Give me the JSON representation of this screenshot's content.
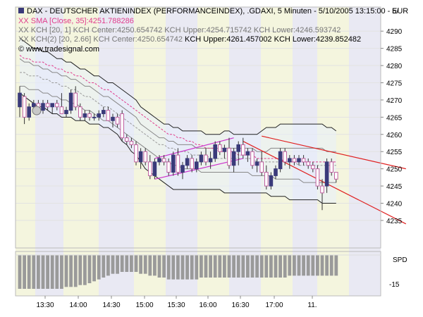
{
  "header": {
    "line1": "DAX - DEUTSCHER AKTIENINDEX (PERFORMANCEINDEX), .GDAXI, 5 Minuten - 5/10/2005 13:15:00 - 5/",
    "currency": "EUR",
    "line2": "XX SMA [Close, 35]:4251.788286",
    "line3": "XX KCH [20, 1] KCH Center:4250.654742 KCH Upper:4254.715742 KCH Lower:4246.593742",
    "line4a": "XX KCH(2) [20, 2.66] KCH Center:4250.654742",
    "line4b": " KCH Upper:4261.457002 KCH Lower:4239.852482",
    "copyright": "© www.tradesignal.com"
  },
  "colors": {
    "up": "#3a3a7a",
    "down": "#c060a0",
    "sma": "#e03c8c",
    "channel_outer": "#222222",
    "channel_inner": "#888888",
    "trend_red": "#e02020",
    "trend_magenta": "#cc33cc",
    "band_yellow": "#f4f5de",
    "band_purple": "#e9e9f3",
    "volume": "#9a9a9a"
  },
  "chart_data": {
    "type": "candlestick",
    "title": "DAX - DEUTSCHER AKTIENINDEX (PERFORMANCEINDEX), .GDAXI, 5 Minuten",
    "ylabel": "EUR",
    "ylim": [
      4227,
      4297
    ],
    "y_ticks": [
      4235,
      4240,
      4245,
      4250,
      4255,
      4260,
      4265,
      4270,
      4275,
      4280,
      4285,
      4290
    ],
    "x_tick_labels": [
      "13:30",
      "14:00",
      "14:30",
      "15:00",
      "15:30",
      "16:00",
      "16:30",
      "17:00",
      "11."
    ],
    "candles": [
      {
        "o": 4268,
        "h": 4274,
        "l": 4265,
        "c": 4272
      },
      {
        "o": 4271,
        "h": 4272,
        "l": 4263,
        "c": 4265
      },
      {
        "o": 4265,
        "h": 4269,
        "l": 4264,
        "c": 4268
      },
      {
        "o": 4268,
        "h": 4270,
        "l": 4266,
        "c": 4269
      },
      {
        "o": 4269,
        "h": 4270,
        "l": 4266,
        "c": 4267
      },
      {
        "o": 4267,
        "h": 4270,
        "l": 4266,
        "c": 4269
      },
      {
        "o": 4269,
        "h": 4270,
        "l": 4267,
        "c": 4268
      },
      {
        "o": 4268,
        "h": 4269,
        "l": 4266,
        "c": 4269
      },
      {
        "o": 4269,
        "h": 4270,
        "l": 4267,
        "c": 4268
      },
      {
        "o": 4268,
        "h": 4272,
        "l": 4266,
        "c": 4266
      },
      {
        "o": 4266,
        "h": 4268,
        "l": 4265,
        "c": 4267
      },
      {
        "o": 4267,
        "h": 4273,
        "l": 4266,
        "c": 4272
      },
      {
        "o": 4272,
        "h": 4274,
        "l": 4267,
        "c": 4268
      },
      {
        "o": 4268,
        "h": 4269,
        "l": 4264,
        "c": 4265
      },
      {
        "o": 4265,
        "h": 4267,
        "l": 4264,
        "c": 4266
      },
      {
        "o": 4266,
        "h": 4267,
        "l": 4264,
        "c": 4265
      },
      {
        "o": 4265,
        "h": 4266,
        "l": 4264,
        "c": 4265
      },
      {
        "o": 4265,
        "h": 4267,
        "l": 4264,
        "c": 4266
      },
      {
        "o": 4266,
        "h": 4268,
        "l": 4265,
        "c": 4267
      },
      {
        "o": 4267,
        "h": 4268,
        "l": 4264,
        "c": 4264
      },
      {
        "o": 4264,
        "h": 4266,
        "l": 4262,
        "c": 4265
      },
      {
        "o": 4265,
        "h": 4266,
        "l": 4262,
        "c": 4263
      },
      {
        "o": 4266,
        "h": 4267,
        "l": 4258,
        "c": 4259
      },
      {
        "o": 4259,
        "h": 4260,
        "l": 4257,
        "c": 4258
      },
      {
        "o": 4258,
        "h": 4259,
        "l": 4256,
        "c": 4257
      },
      {
        "o": 4257,
        "h": 4258,
        "l": 4251,
        "c": 4252
      },
      {
        "o": 4252,
        "h": 4256,
        "l": 4250,
        "c": 4255
      },
      {
        "o": 4255,
        "h": 4256,
        "l": 4251,
        "c": 4252
      },
      {
        "o": 4252,
        "h": 4254,
        "l": 4247,
        "c": 4248
      },
      {
        "o": 4248,
        "h": 4253,
        "l": 4247,
        "c": 4252
      },
      {
        "o": 4252,
        "h": 4254,
        "l": 4251,
        "c": 4253
      },
      {
        "o": 4253,
        "h": 4254,
        "l": 4251,
        "c": 4252
      },
      {
        "o": 4252,
        "h": 4253,
        "l": 4248,
        "c": 4249
      },
      {
        "o": 4249,
        "h": 4255,
        "l": 4248,
        "c": 4254
      },
      {
        "o": 4254,
        "h": 4256,
        "l": 4248,
        "c": 4249
      },
      {
        "o": 4249,
        "h": 4252,
        "l": 4247,
        "c": 4251
      },
      {
        "o": 4251,
        "h": 4254,
        "l": 4250,
        "c": 4253
      },
      {
        "o": 4253,
        "h": 4254,
        "l": 4249,
        "c": 4250
      },
      {
        "o": 4250,
        "h": 4253,
        "l": 4249,
        "c": 4252
      },
      {
        "o": 4252,
        "h": 4255,
        "l": 4251,
        "c": 4254
      },
      {
        "o": 4254,
        "h": 4256,
        "l": 4251,
        "c": 4252
      },
      {
        "o": 4252,
        "h": 4255,
        "l": 4250,
        "c": 4253
      },
      {
        "o": 4253,
        "h": 4258,
        "l": 4252,
        "c": 4257
      },
      {
        "o": 4257,
        "h": 4258,
        "l": 4254,
        "c": 4255
      },
      {
        "o": 4255,
        "h": 4257,
        "l": 4253,
        "c": 4256
      },
      {
        "o": 4256,
        "h": 4259,
        "l": 4250,
        "c": 4251
      },
      {
        "o": 4251,
        "h": 4256,
        "l": 4249,
        "c": 4255
      },
      {
        "o": 4255,
        "h": 4258,
        "l": 4251,
        "c": 4257
      },
      {
        "o": 4257,
        "h": 4259,
        "l": 4253,
        "c": 4254
      },
      {
        "o": 4254,
        "h": 4256,
        "l": 4252,
        "c": 4255
      },
      {
        "o": 4255,
        "h": 4256,
        "l": 4250,
        "c": 4251
      },
      {
        "o": 4251,
        "h": 4253,
        "l": 4249,
        "c": 4252
      },
      {
        "o": 4252,
        "h": 4255,
        "l": 4248,
        "c": 4249
      },
      {
        "o": 4249,
        "h": 4251,
        "l": 4244,
        "c": 4245
      },
      {
        "o": 4245,
        "h": 4249,
        "l": 4244,
        "c": 4248
      },
      {
        "o": 4248,
        "h": 4251,
        "l": 4247,
        "c": 4250
      },
      {
        "o": 4250,
        "h": 4256,
        "l": 4249,
        "c": 4255
      },
      {
        "o": 4255,
        "h": 4256,
        "l": 4251,
        "c": 4252
      },
      {
        "o": 4252,
        "h": 4254,
        "l": 4250,
        "c": 4253
      },
      {
        "o": 4253,
        "h": 4254,
        "l": 4251,
        "c": 4252
      },
      {
        "o": 4252,
        "h": 4254,
        "l": 4251,
        "c": 4253
      },
      {
        "o": 4253,
        "h": 4254,
        "l": 4251,
        "c": 4252
      },
      {
        "o": 4252,
        "h": 4253,
        "l": 4250,
        "c": 4251
      },
      {
        "o": 4251,
        "h": 4252,
        "l": 4249,
        "c": 4250
      },
      {
        "o": 4250,
        "h": 4251,
        "l": 4244,
        "c": 4245
      },
      {
        "o": 4245,
        "h": 4247,
        "l": 4238,
        "c": 4243
      },
      {
        "o": 4245,
        "h": 4253,
        "l": 4243,
        "c": 4252
      },
      {
        "o": 4252,
        "h": 4253,
        "l": 4248,
        "c": 4249
      },
      {
        "o": 4249,
        "h": 4249,
        "l": 4246,
        "c": 4247
      }
    ],
    "channel_upper_outer": [
      4288,
      4287,
      4286,
      4285,
      4285,
      4284,
      4284,
      4283,
      4282,
      4282,
      4281,
      4281,
      4280,
      4279,
      4279,
      4278,
      4277,
      4277,
      4276,
      4275,
      4275,
      4274,
      4273,
      4272,
      4271,
      4270,
      4268,
      4267,
      4266,
      4265,
      4264,
      4263,
      4263,
      4262,
      4262,
      4261,
      4261,
      4261,
      4261,
      4261,
      4260,
      4260,
      4260,
      4260,
      4261,
      4261,
      4260,
      4260,
      4260,
      4260,
      4260,
      4260,
      4261,
      4262,
      4262,
      4262,
      4263,
      4263,
      4263,
      4263,
      4263,
      4263,
      4263,
      4263,
      4263,
      4263,
      4262,
      4262,
      4261
    ],
    "channel_upper_inner": [
      4282,
      4281,
      4281,
      4280,
      4280,
      4279,
      4279,
      4278,
      4278,
      4277,
      4277,
      4276,
      4276,
      4275,
      4274,
      4274,
      4273,
      4272,
      4271,
      4271,
      4270,
      4269,
      4268,
      4267,
      4266,
      4265,
      4263,
      4262,
      4261,
      4260,
      4259,
      4259,
      4258,
      4258,
      4257,
      4257,
      4257,
      4257,
      4256,
      4256,
      4256,
      4256,
      4256,
      4256,
      4256,
      4256,
      4256,
      4256,
      4256,
      4256,
      4256,
      4255,
      4255,
      4255,
      4256,
      4256,
      4256,
      4256,
      4256,
      4256,
      4256,
      4256,
      4256,
      4256,
      4256,
      4256,
      4255,
      4255,
      4255
    ],
    "channel_center": [
      4278,
      4278,
      4277,
      4277,
      4277,
      4276,
      4276,
      4275,
      4275,
      4274,
      4274,
      4273,
      4273,
      4272,
      4271,
      4271,
      4270,
      4269,
      4268,
      4268,
      4267,
      4266,
      4265,
      4264,
      4263,
      4262,
      4261,
      4260,
      4259,
      4258,
      4257,
      4257,
      4256,
      4256,
      4255,
      4255,
      4255,
      4254,
      4254,
      4254,
      4254,
      4253,
      4253,
      4253,
      4253,
      4253,
      4253,
      4253,
      4253,
      4253,
      4253,
      4252,
      4252,
      4252,
      4252,
      4252,
      4252,
      4252,
      4252,
      4252,
      4251,
      4251,
      4251,
      4251,
      4251,
      4251,
      4251,
      4251,
      4251
    ],
    "channel_lower_inner": [
      4274,
      4274,
      4273,
      4273,
      4273,
      4272,
      4272,
      4271,
      4271,
      4270,
      4270,
      4269,
      4269,
      4268,
      4267,
      4267,
      4266,
      4265,
      4264,
      4264,
      4263,
      4262,
      4261,
      4260,
      4259,
      4258,
      4257,
      4256,
      4255,
      4254,
      4253,
      4252,
      4252,
      4251,
      4251,
      4250,
      4250,
      4250,
      4250,
      4249,
      4249,
      4249,
      4249,
      4249,
      4249,
      4249,
      4249,
      4249,
      4249,
      4249,
      4248,
      4248,
      4248,
      4248,
      4248,
      4247,
      4247,
      4247,
      4247,
      4247,
      4247,
      4246,
      4246,
      4246,
      4246,
      4246,
      4246,
      4246,
      4246
    ],
    "channel_lower_outer": [
      4272,
      4271,
      4270,
      4269,
      4268,
      4268,
      4267,
      4266,
      4266,
      4265,
      4265,
      4265,
      4264,
      4264,
      4264,
      4263,
      4263,
      4263,
      4262,
      4262,
      4261,
      4260,
      4258,
      4257,
      4255,
      4254,
      4252,
      4250,
      4249,
      4248,
      4247,
      4246,
      4245,
      4244,
      4244,
      4244,
      4244,
      4244,
      4244,
      4244,
      4244,
      4244,
      4244,
      4244,
      4243,
      4243,
      4243,
      4243,
      4243,
      4243,
      4243,
      4243,
      4243,
      4243,
      4242,
      4242,
      4242,
      4242,
      4241,
      4241,
      4241,
      4241,
      4241,
      4241,
      4241,
      4240,
      4240,
      4240,
      4240
    ],
    "sma": [
      4283,
      4282,
      4282,
      4281,
      4281,
      4281,
      4280,
      4280,
      4279,
      4279,
      4278,
      4278,
      4277,
      4277,
      4276,
      4275,
      4275,
      4274,
      4273,
      4273,
      4272,
      4271,
      4270,
      4269,
      4268,
      4267,
      4266,
      4265,
      4264,
      4263,
      4262,
      4261,
      4260,
      4260,
      4259,
      4259,
      4258,
      4258,
      4257,
      4257,
      4256,
      4256,
      4256,
      4255,
      4255,
      4255,
      4255,
      4254,
      4254,
      4254,
      4254,
      4253,
      4253,
      4253,
      4253,
      4253,
      4253,
      4252,
      4252,
      4252,
      4252,
      4252,
      4252,
      4252,
      4252,
      4252,
      4252,
      4252,
      4252
    ],
    "trendlines": [
      {
        "name": "red-upper",
        "x0": 52,
        "y0": 4259.5,
        "x1": 83,
        "y1": 4250
      },
      {
        "name": "red-lower",
        "x0": 48,
        "y0": 4258,
        "x1": 83,
        "y1": 4234
      },
      {
        "name": "magenta-upper",
        "x0": 29,
        "y0": 4253,
        "x1": 46,
        "y1": 4259
      },
      {
        "name": "magenta-lower",
        "x0": 29,
        "y0": 4247,
        "x1": 48,
        "y1": 4253
      }
    ],
    "spd_label": "SPD",
    "spd_tick": "-15",
    "spd_values": [
      18,
      18,
      18,
      18,
      18,
      18,
      18,
      18,
      18,
      18,
      17,
      17,
      17,
      16,
      16,
      15,
      14,
      13,
      12,
      11,
      10,
      10,
      9,
      9,
      9,
      9,
      10,
      10,
      11,
      11,
      12,
      12,
      13,
      13,
      13,
      13,
      13,
      13,
      13,
      12,
      12,
      12,
      12,
      12,
      12,
      12,
      12,
      12,
      12,
      12,
      12,
      12,
      12,
      12,
      12,
      12,
      12,
      12,
      11,
      11,
      11,
      11,
      11,
      11,
      11,
      11,
      11,
      11,
      11
    ],
    "spd_ylim": [
      -21,
      0
    ]
  }
}
